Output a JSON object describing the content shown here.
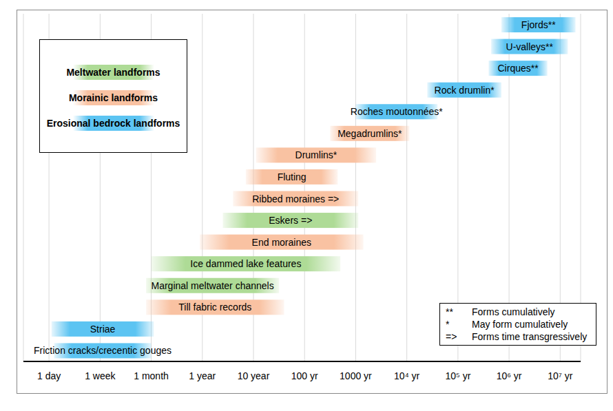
{
  "chart_data": {
    "type": "range_bar",
    "orientation": "horizontal",
    "grid": true,
    "legend": "upper left",
    "tick_labels": "x",
    "xlim": [
      -0.5,
      10.4
    ],
    "xticks": [
      {
        "value": 0,
        "label": "1 day"
      },
      {
        "value": 1,
        "label": "1 week"
      },
      {
        "value": 2,
        "label": "1 month"
      },
      {
        "value": 3,
        "label": "1 year"
      },
      {
        "value": 4,
        "label": "10 year"
      },
      {
        "value": 5,
        "label": "100 yr"
      },
      {
        "value": 6,
        "label": "1000 yr"
      },
      {
        "value": 7,
        "label": "10⁴ yr"
      },
      {
        "value": 8,
        "label": "10⁵ yr"
      },
      {
        "value": 9,
        "label": "10⁶ yr"
      },
      {
        "value": 10,
        "label": "10⁷ yr"
      }
    ],
    "series": [
      {
        "name": "Meltwater landforms",
        "color": "#aedb96"
      },
      {
        "name": "Morainic landforms",
        "color": "#f9c2a2"
      },
      {
        "name": "Erosional bedrock landforms",
        "color": "#5cc4f2"
      }
    ],
    "bars": [
      {
        "label": "Fjords**",
        "start": 8.85,
        "end": 10.3,
        "series": "Erosional bedrock landforms"
      },
      {
        "label": "U-valleys**",
        "start": 8.65,
        "end": 10.15,
        "series": "Erosional bedrock landforms"
      },
      {
        "label": "Cirques**",
        "start": 8.6,
        "end": 9.75,
        "series": "Erosional bedrock landforms"
      },
      {
        "label": "Rock drumlin*",
        "start": 7.4,
        "end": 8.85,
        "series": "Erosional bedrock landforms"
      },
      {
        "label": "Roches moutonnées*",
        "start": 6.0,
        "end": 7.6,
        "series": "Erosional bedrock landforms"
      },
      {
        "label": "Megadrumlins*",
        "start": 5.5,
        "end": 7.05,
        "series": "Morainic landforms"
      },
      {
        "label": "Drumlins*",
        "start": 4.05,
        "end": 6.4,
        "series": "Morainic landforms"
      },
      {
        "label": "Fluting",
        "start": 3.85,
        "end": 5.65,
        "series": "Morainic landforms"
      },
      {
        "label": "Ribbed moraines =>",
        "start": 3.6,
        "end": 6.05,
        "series": "Morainic landforms"
      },
      {
        "label": "Eskers =>",
        "start": 3.4,
        "end": 6.05,
        "series": "Meltwater landforms"
      },
      {
        "label": "End moraines",
        "start": 2.95,
        "end": 6.15,
        "series": "Morainic landforms"
      },
      {
        "label": "Ice dammed lake features",
        "start": 2.0,
        "end": 5.7,
        "series": "Meltwater landforms"
      },
      {
        "label": "Marginal meltwater channels",
        "start": 1.9,
        "end": 4.5,
        "series": "Meltwater landforms"
      },
      {
        "label": "Till fabric records",
        "start": 1.9,
        "end": 4.6,
        "series": "Morainic landforms"
      },
      {
        "label": "Striae",
        "start": 0.05,
        "end": 2.05,
        "series": "Erosional bedrock landforms"
      },
      {
        "label": "Friction cracks/crecentic gouges",
        "start": 0.1,
        "end": 2.0,
        "series": "Erosional bedrock landforms"
      }
    ],
    "annotations": [
      {
        "symbol": "**",
        "text": "Forms cumulatively"
      },
      {
        "symbol": "*",
        "text": "May form cumulatively"
      },
      {
        "symbol": "=>",
        "text": "Forms time transgressively"
      }
    ]
  }
}
